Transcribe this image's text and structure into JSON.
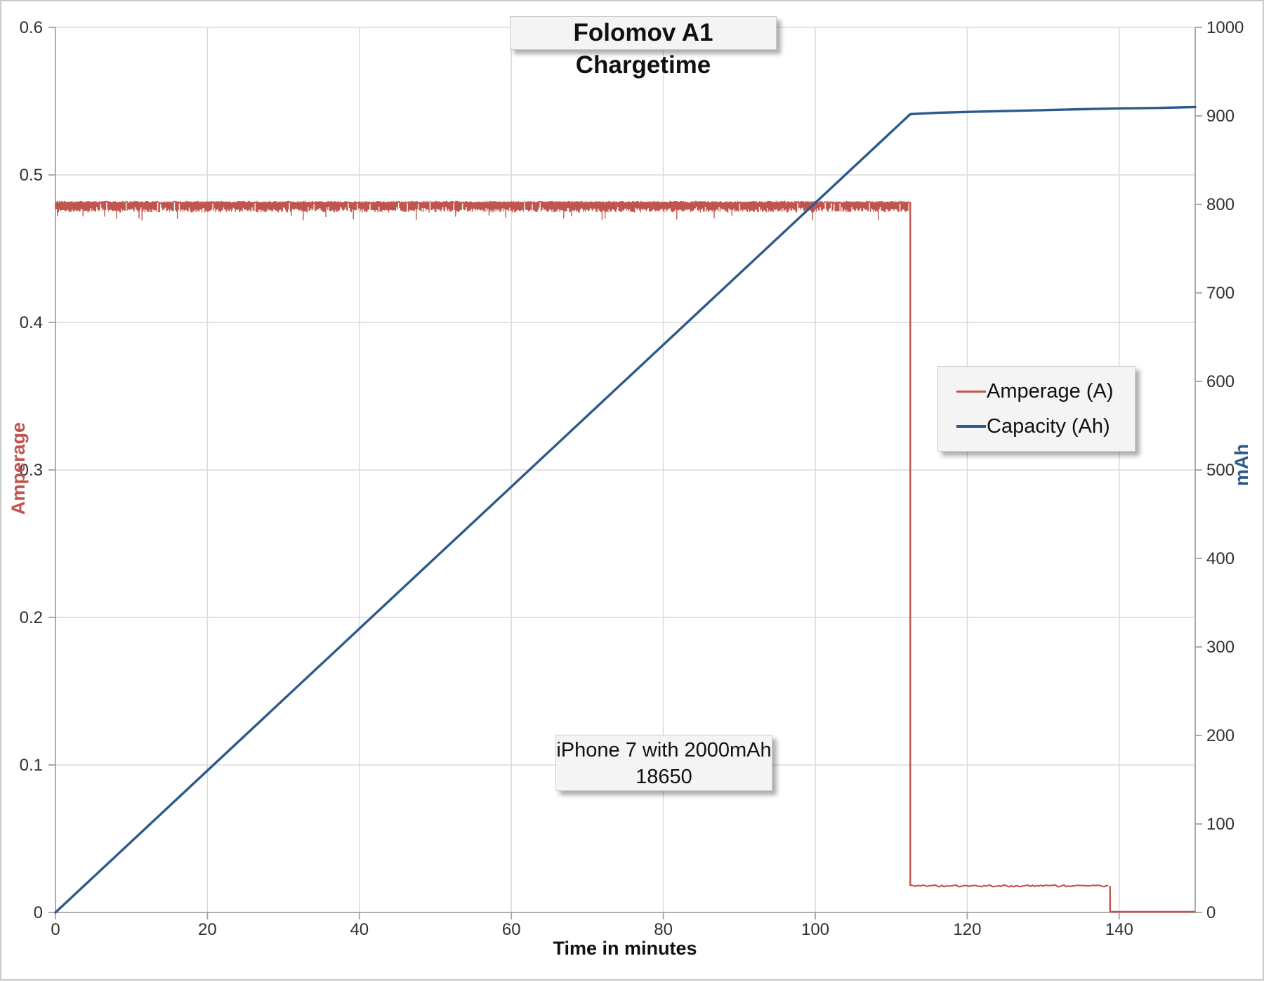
{
  "title": "Folomov A1 Chargetime",
  "annotation": {
    "line1": "iPhone 7 with 2000mAh",
    "line2": "18650"
  },
  "legend": [
    {
      "label": "Amperage (A)",
      "color": "#c0554f"
    },
    {
      "label": "Capacity (Ah)",
      "color": "#2d5a8c"
    }
  ],
  "colors": {
    "amperage": "#c0554f",
    "capacity": "#2d5a8c",
    "gridline": "#dadada",
    "axis": "#a3a3a3",
    "tick_text": "#303030",
    "box_fill": "#f4f4f4"
  },
  "chart_data": {
    "type": "line",
    "title": "Folomov A1 Chargetime",
    "xlabel": "Time in minutes",
    "ylabel_left": "Amperage",
    "ylabel_right": "mAh",
    "xlim": [
      0,
      150
    ],
    "x_ticks": [
      "0",
      "20",
      "40",
      "60",
      "80",
      "100",
      "120",
      "140"
    ],
    "ylim_left": [
      0,
      0.6
    ],
    "y_left_ticks": [
      "0",
      "0.1",
      "0.2",
      "0.3",
      "0.4",
      "0.5",
      "0.6"
    ],
    "ylim_right": [
      0,
      1000
    ],
    "y_right_ticks": [
      "0",
      "100",
      "200",
      "300",
      "400",
      "500",
      "600",
      "700",
      "800",
      "900",
      "1000"
    ],
    "grid": true,
    "legend_position": "middle-right",
    "series": [
      {
        "name": "Amperage (A)",
        "axis": "left",
        "color": "#c0554f",
        "style": "noisy-band",
        "band": {
          "top": 0.4825,
          "bottom": 0.4745
        },
        "points": [
          [
            0,
            0.478
          ],
          [
            112.5,
            0.478
          ],
          [
            112.5,
            0.018
          ],
          [
            138.8,
            0.018
          ],
          [
            138.8,
            0
          ],
          [
            150,
            0
          ]
        ]
      },
      {
        "name": "Capacity (Ah)",
        "axis": "right",
        "color": "#2d5a8c",
        "style": "line",
        "points": [
          [
            0,
            0
          ],
          [
            112.5,
            902
          ],
          [
            116,
            903.5
          ],
          [
            120,
            904.5
          ],
          [
            125,
            905.5
          ],
          [
            130,
            906.5
          ],
          [
            135,
            907.5
          ],
          [
            140,
            908.5
          ],
          [
            145,
            909
          ],
          [
            150,
            910
          ]
        ]
      }
    ]
  }
}
